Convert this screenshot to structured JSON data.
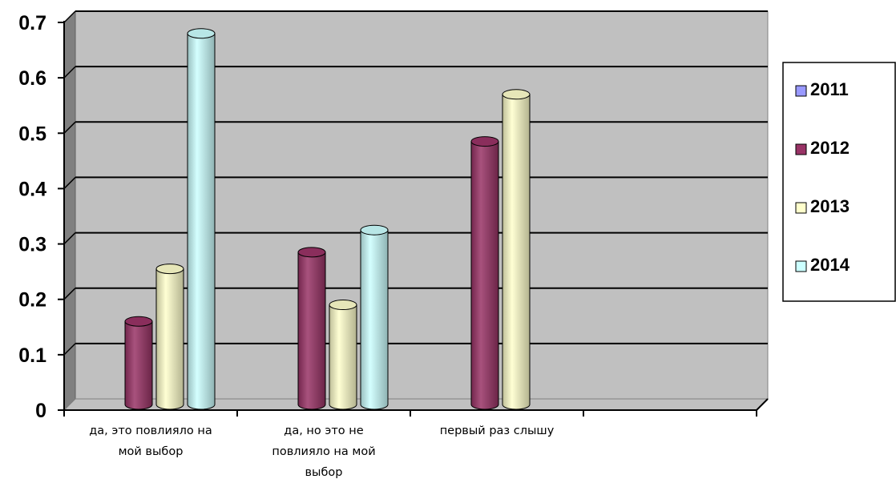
{
  "chart_data": {
    "type": "bar",
    "title": "",
    "xlabel": "",
    "ylabel": "",
    "ylim": [
      0,
      0.7
    ],
    "yticks": [
      "0",
      "0.1",
      "0.2",
      "0.3",
      "0.4",
      "0.5",
      "0.6",
      "0.7"
    ],
    "grid": true,
    "legend_position": "right",
    "categories": [
      [
        "да, это повлияло на",
        "мой выбор"
      ],
      [
        "да, но это не",
        "повлияло на мой",
        "выбор"
      ],
      [
        "первый раз слышу"
      ],
      [
        ""
      ]
    ],
    "series": [
      {
        "name": "2011",
        "color": "#9999ff",
        "values": [
          0,
          0,
          0,
          0
        ]
      },
      {
        "name": "2012",
        "color": "#993366",
        "values": [
          0.15,
          0.275,
          0.475,
          0
        ]
      },
      {
        "name": "2013",
        "color": "#ffffcc",
        "values": [
          0.245,
          0.18,
          0.56,
          0
        ]
      },
      {
        "name": "2014",
        "color": "#ccffff",
        "values": [
          0.67,
          0.315,
          0,
          0
        ]
      }
    ]
  }
}
